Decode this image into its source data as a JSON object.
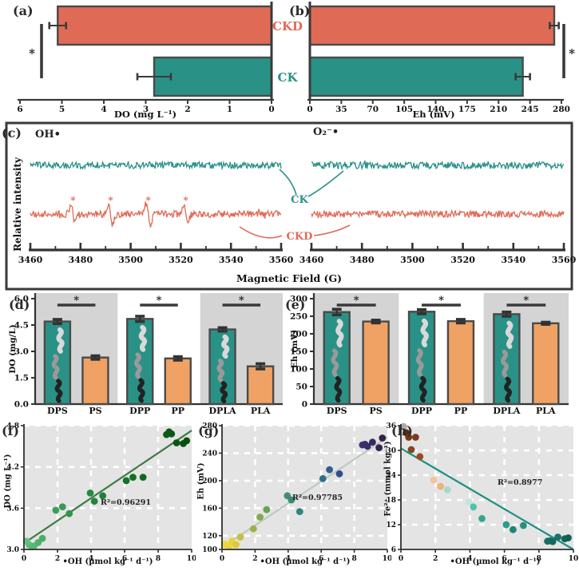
{
  "colors": {
    "salmon": "#DF6B57",
    "teal": "#2A9187",
    "orange_bar": "#F0A264",
    "shade_gray": "#D4D4D4",
    "scatter_bg": "#E4E4E4",
    "axis_dark": "#3A3A3A"
  },
  "top_row_labels": {
    "ckd": "CKD",
    "ck": "CK"
  },
  "panels": {
    "a": {
      "tag": "(a)",
      "xlabel": "DO (mg L⁻¹)"
    },
    "b": {
      "tag": "(b)",
      "xlabel": "Eh (mV)"
    },
    "c": {
      "tag": "(c)",
      "xlabel": "Magnetic Field (G)",
      "ylabel": "Relative intensity",
      "sub_left": "OH•",
      "sub_right": "O₂⁻•",
      "label_ck": "CK",
      "label_ckd": "CKD"
    },
    "d": {
      "tag": "(d)",
      "ylabel": "DO (mg/L)"
    },
    "e": {
      "tag": "(e)",
      "ylabel": "Eh (mV)"
    },
    "f": {
      "tag": "(f)",
      "xlabel": "•OH (µmol kg⁻¹ d⁻¹)",
      "ylabel": "DO (mg L⁻¹)",
      "r2": "R²=0.96291"
    },
    "g": {
      "tag": "(g)",
      "xlabel": "•OH (µmol kg⁻¹ d⁻¹)",
      "ylabel": "Eh (mV)",
      "r2": "R²=0.97785"
    },
    "h": {
      "tag": "(h)",
      "xlabel": "•OH (µmol kg⁻¹ d⁻¹)",
      "ylabel": "Fe²⁺ (mmol kg⁻¹)",
      "r2": "R²=0.8977"
    }
  },
  "chart_data": [
    {
      "id": "a",
      "type": "bar",
      "orientation": "horizontal",
      "categories": [
        "CKD",
        "CK"
      ],
      "values": [
        5.1,
        2.8
      ],
      "errors": [
        0.2,
        0.4
      ],
      "bar_colors": [
        "#DF6B57",
        "#2A9187"
      ],
      "xlabel": "DO (mg L⁻¹)",
      "xlim": [
        6,
        0
      ],
      "xticks": [
        6,
        5,
        4,
        3,
        2,
        1,
        0
      ],
      "significance": "*",
      "significance_side": "left"
    },
    {
      "id": "b",
      "type": "bar",
      "orientation": "horizontal",
      "categories": [
        "CKD",
        "CK"
      ],
      "values": [
        272,
        237
      ],
      "errors": [
        5,
        8
      ],
      "bar_colors": [
        "#DF6B57",
        "#2A9187"
      ],
      "xlabel": "Eh (mV)",
      "xlim": [
        0,
        280
      ],
      "xticks": [
        0,
        35,
        70,
        105,
        140,
        175,
        210,
        245,
        280
      ],
      "significance": "*",
      "significance_side": "right"
    },
    {
      "id": "c",
      "type": "line",
      "xlabel": "Magnetic Field (G)",
      "ylabel": "Relative intensity",
      "xlim": [
        3460,
        3560
      ],
      "xticks": [
        3460,
        3480,
        3500,
        3520,
        3540,
        3560
      ],
      "subplots": [
        {
          "label": "OH•",
          "series": [
            {
              "name": "CK",
              "color": "#2A9187",
              "peaks": [],
              "peak_heights": []
            },
            {
              "name": "CKD",
              "color": "#DF6B57",
              "peaks": [
                3477,
                3492,
                3507,
                3522
              ],
              "peak_heights": [
                1.0,
                1.3,
                1.3,
                1.0
              ],
              "peak_marker": "*"
            }
          ]
        },
        {
          "label": "O₂⁻•",
          "series": [
            {
              "name": "CK",
              "color": "#2A9187",
              "peaks": [],
              "peak_heights": []
            },
            {
              "name": "CKD",
              "color": "#DF6B57",
              "peaks": [],
              "peak_heights": []
            }
          ]
        }
      ]
    },
    {
      "id": "d",
      "type": "bar",
      "categories": [
        "DPS",
        "PS",
        "DPP",
        "PP",
        "DPLA",
        "PLA"
      ],
      "values": [
        4.7,
        2.65,
        4.85,
        2.6,
        4.25,
        2.15
      ],
      "errors": [
        0.12,
        0.1,
        0.15,
        0.1,
        0.1,
        0.15
      ],
      "bar_colors": [
        "#2A9187",
        "#F0A264",
        "#2A9187",
        "#F0A264",
        "#2A9187",
        "#F0A264"
      ],
      "ylabel": "DO (mg/L)",
      "ylim": [
        0,
        6
      ],
      "yticks": [
        "0.0",
        "1.5",
        "3.0",
        "4.5",
        "6.0"
      ],
      "pair_significance": [
        "*",
        "*",
        "*"
      ],
      "group_shading": [
        true,
        false,
        true
      ]
    },
    {
      "id": "e",
      "type": "bar",
      "categories": [
        "DPS",
        "PS",
        "DPP",
        "PP",
        "DPLA",
        "PLA"
      ],
      "values": [
        262,
        235,
        263,
        236,
        256,
        230
      ],
      "errors": [
        8,
        4,
        6,
        5,
        6,
        3
      ],
      "bar_colors": [
        "#2A9187",
        "#F0A264",
        "#2A9187",
        "#F0A264",
        "#2A9187",
        "#F0A264"
      ],
      "ylabel": "Eh (mV)",
      "ylim": [
        0,
        300
      ],
      "yticks": [
        "0",
        "50",
        "100",
        "150",
        "200",
        "250",
        "300"
      ],
      "pair_significance": [
        "*",
        "*",
        "*"
      ],
      "group_shading": [
        true,
        false,
        true
      ]
    },
    {
      "id": "f",
      "type": "scatter",
      "xlabel": "•OH (µmol kg⁻¹ d⁻¹)",
      "ylabel": "DO (mg L⁻¹)",
      "r2": "R²=0.96291",
      "xlim": [
        0,
        10
      ],
      "xticks": [
        0,
        2,
        4,
        6,
        8,
        10
      ],
      "ylim": [
        3.0,
        4.8
      ],
      "yticks": [
        "3.0",
        "3.6",
        "4.2",
        "4.8"
      ],
      "x": [
        0.15,
        0.3,
        0.45,
        0.6,
        0.85,
        1.1,
        1.9,
        2.3,
        2.7,
        3.95,
        4.2,
        4.7,
        6.1,
        6.5,
        7.1,
        8.5,
        8.65,
        8.8,
        9.1,
        9.5,
        9.7
      ],
      "y": [
        3.12,
        3.07,
        3.04,
        3.05,
        3.1,
        3.16,
        3.57,
        3.62,
        3.52,
        3.82,
        3.7,
        3.78,
        4.0,
        4.05,
        4.05,
        4.67,
        4.71,
        4.68,
        4.55,
        4.54,
        4.58
      ],
      "point_colors": [
        "#66C183",
        "#60BD7E",
        "#5BBA7A",
        "#57B776",
        "#50B26F",
        "#48AC67",
        "#3AA059",
        "#359B53",
        "#30964E",
        "#248941",
        "#22863D",
        "#1E8037",
        "#16722B",
        "#146E27",
        "#116823",
        "#0C5B18",
        "#0B5A17",
        "#0B5816",
        "#0A5513",
        "#085110",
        "#084F0F"
      ],
      "trend": {
        "x": [
          0,
          10
        ],
        "y": [
          3.09,
          4.73
        ],
        "color": "#3E7A44"
      }
    },
    {
      "id": "g",
      "type": "scatter",
      "xlabel": "•OH (µmol kg⁻¹ d⁻¹)",
      "ylabel": "Eh (mV)",
      "r2": "R²=0.97785",
      "xlim": [
        0,
        10
      ],
      "xticks": [
        0,
        2,
        4,
        6,
        8,
        10
      ],
      "ylim": [
        100,
        280
      ],
      "yticks": [
        "100",
        "120",
        "160",
        "200",
        "240",
        "280"
      ],
      "x": [
        0.15,
        0.3,
        0.45,
        0.6,
        0.85,
        1.1,
        1.9,
        2.3,
        2.7,
        3.95,
        4.2,
        4.7,
        6.1,
        6.5,
        7.1,
        8.5,
        8.65,
        8.8,
        9.1,
        9.5,
        9.7
      ],
      "y": [
        108,
        106,
        104,
        112,
        107,
        118,
        130,
        147,
        158,
        178,
        172,
        155,
        203,
        216,
        210,
        252,
        253,
        250,
        256,
        248,
        262
      ],
      "point_colors": [
        "#F0DA3E",
        "#EDD73E",
        "#EAD43D",
        "#E7D13D",
        "#DCC93D",
        "#C8C03F",
        "#9BB24A",
        "#82AA50",
        "#6AA157",
        "#3F8F70",
        "#3A8B74",
        "#33837D",
        "#2F6E8E",
        "#305E90",
        "#324D8C",
        "#383370",
        "#38316C",
        "#372F66",
        "#362A5D",
        "#342450",
        "#33224C"
      ],
      "trend": {
        "x": [
          0,
          10
        ],
        "y": [
          103,
          263
        ],
        "color": "#BDC9BE"
      }
    },
    {
      "id": "h",
      "type": "scatter",
      "xlabel": "•OH (µmol kg⁻¹ d⁻¹)",
      "ylabel": "Fe²⁺ (mmol kg⁻¹)",
      "r2": "R²=0.8977",
      "xlim": [
        0,
        10
      ],
      "xticks": [
        0,
        2,
        4,
        6,
        8,
        10
      ],
      "ylim": [
        6,
        36
      ],
      "yticks": [
        "6",
        "12",
        "18",
        "24",
        "30",
        "36"
      ],
      "x": [
        0.15,
        0.3,
        0.45,
        0.6,
        0.85,
        1.1,
        1.9,
        2.3,
        2.7,
        3.95,
        4.2,
        4.7,
        6.1,
        6.5,
        7.1,
        8.5,
        8.65,
        8.8,
        9.1,
        9.5,
        9.7
      ],
      "y": [
        35.8,
        34.3,
        33.2,
        30.2,
        33.2,
        28.5,
        22.8,
        21.3,
        20.5,
        17.5,
        16.3,
        13.5,
        12.0,
        10.8,
        11.8,
        8.0,
        8.1,
        7.9,
        9.0,
        8.6,
        8.8
      ],
      "point_colors": [
        "#ABABAB",
        "#5C2D10",
        "#74391A",
        "#8B4225",
        "#7A3C1E",
        "#9C4A20",
        "#F2C49B",
        "#EFB183",
        "#A6DACC",
        "#C2E5DB",
        "#52C0AC",
        "#35A690",
        "#2E9C8C",
        "#1F8476",
        "#278F7D",
        "#186D62",
        "#186D62",
        "#15685D",
        "#1A7366",
        "#136359",
        "#125D54"
      ],
      "trend": {
        "x": [
          0,
          10
        ],
        "y": [
          30.5,
          6.0
        ],
        "color": "#1F8F80"
      }
    }
  ]
}
